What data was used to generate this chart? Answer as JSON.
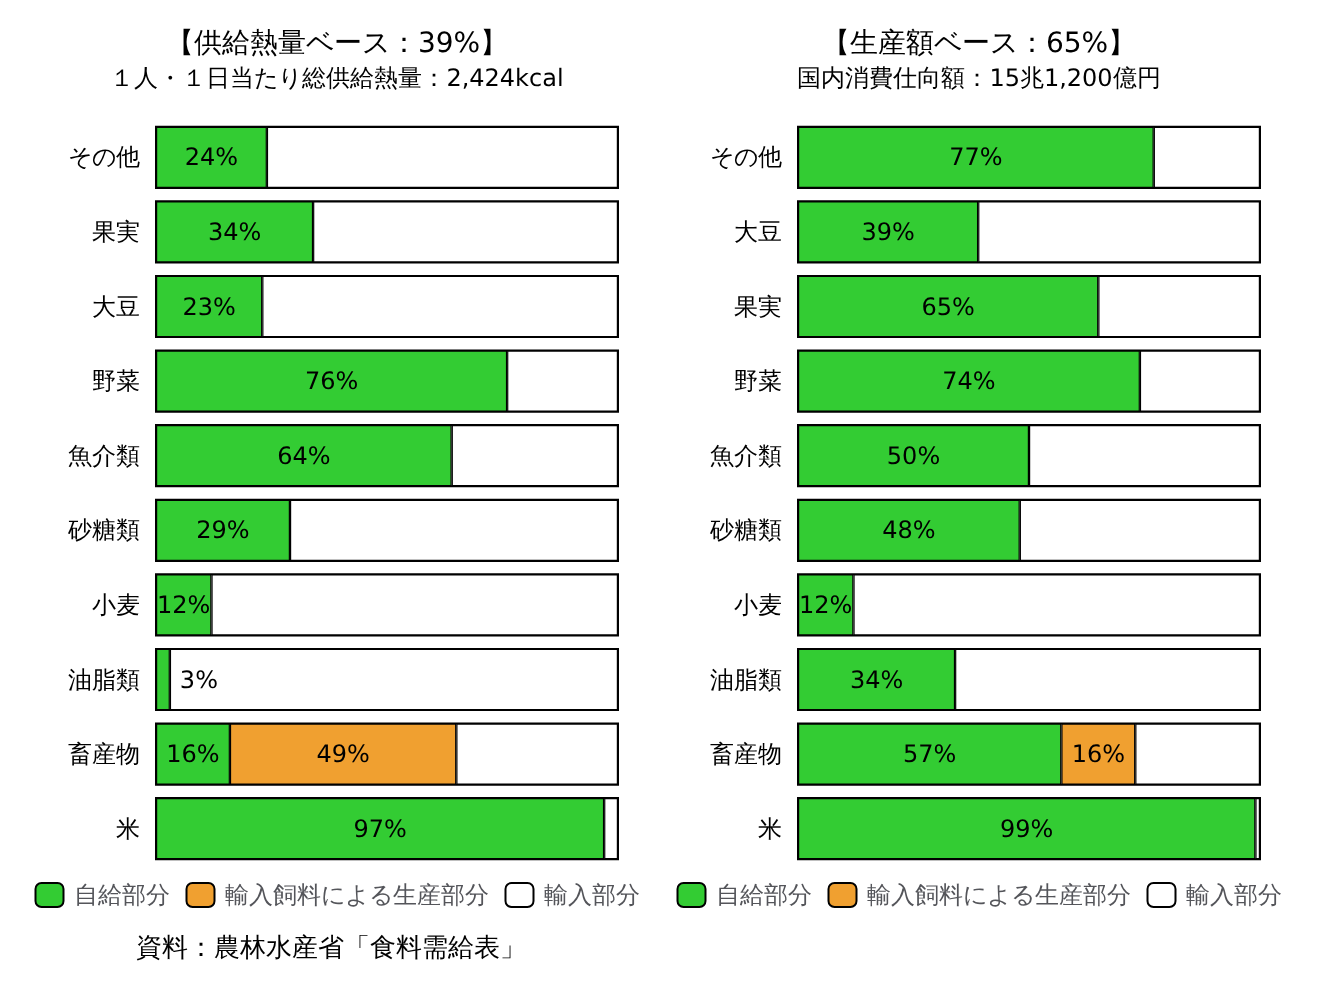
{
  "chart_data": [
    {
      "type": "bar",
      "orientation": "horizontal",
      "stacked": true,
      "title": "【供給熱量ベース：39%】",
      "subtitle": "１人・１日当たり総供給熱量：2,424kcal",
      "categories": [
        "その他",
        "果実",
        "大豆",
        "野菜",
        "魚介類",
        "砂糖類",
        "小麦",
        "油脂類",
        "畜産物",
        "米"
      ],
      "xlim": [
        0,
        100
      ],
      "tick_labels": "y",
      "grid": false,
      "legend": "bottom",
      "annotations": [
        "資料：農林水産省「食料需給表」"
      ],
      "series": [
        {
          "name": "自給部分",
          "color": "#33cc33",
          "values": [
            24,
            34,
            23,
            76,
            64,
            29,
            12,
            3,
            16,
            97
          ],
          "value_labels": [
            "24%",
            "34%",
            "23%",
            "76%",
            "64%",
            "29%",
            "12%",
            "3%",
            "16%",
            "97%"
          ]
        },
        {
          "name": "輸入飼料による生産部分",
          "color": "#f0a030",
          "values": [
            null,
            null,
            null,
            null,
            null,
            null,
            null,
            null,
            49,
            null
          ],
          "value_labels": [
            null,
            null,
            null,
            null,
            null,
            null,
            null,
            null,
            "49%",
            null
          ]
        },
        {
          "name": "輸入部分",
          "color": "#ffffff",
          "values": [
            76,
            66,
            77,
            24,
            36,
            71,
            88,
            97,
            35,
            3
          ]
        }
      ]
    },
    {
      "type": "bar",
      "orientation": "horizontal",
      "stacked": true,
      "title": "【生産額ベース：65%】",
      "subtitle": "国内消費仕向額：15兆1,200億円",
      "categories": [
        "その他",
        "大豆",
        "果実",
        "野菜",
        "魚介類",
        "砂糖類",
        "小麦",
        "油脂類",
        "畜産物",
        "米"
      ],
      "xlim": [
        0,
        100
      ],
      "tick_labels": "y",
      "grid": false,
      "legend": "bottom",
      "series": [
        {
          "name": "自給部分",
          "color": "#33cc33",
          "values": [
            77,
            39,
            65,
            74,
            50,
            48,
            12,
            34,
            57,
            99
          ],
          "value_labels": [
            "77%",
            "39%",
            "65%",
            "74%",
            "50%",
            "48%",
            "12%",
            "34%",
            "57%",
            "99%"
          ]
        },
        {
          "name": "輸入飼料による生産部分",
          "color": "#f0a030",
          "values": [
            null,
            null,
            null,
            null,
            null,
            null,
            null,
            null,
            16,
            null
          ],
          "value_labels": [
            null,
            null,
            null,
            null,
            null,
            null,
            null,
            null,
            "16%",
            null
          ]
        },
        {
          "name": "輸入部分",
          "color": "#ffffff",
          "values": [
            23,
            61,
            35,
            26,
            50,
            52,
            88,
            66,
            27,
            1
          ]
        }
      ]
    }
  ]
}
